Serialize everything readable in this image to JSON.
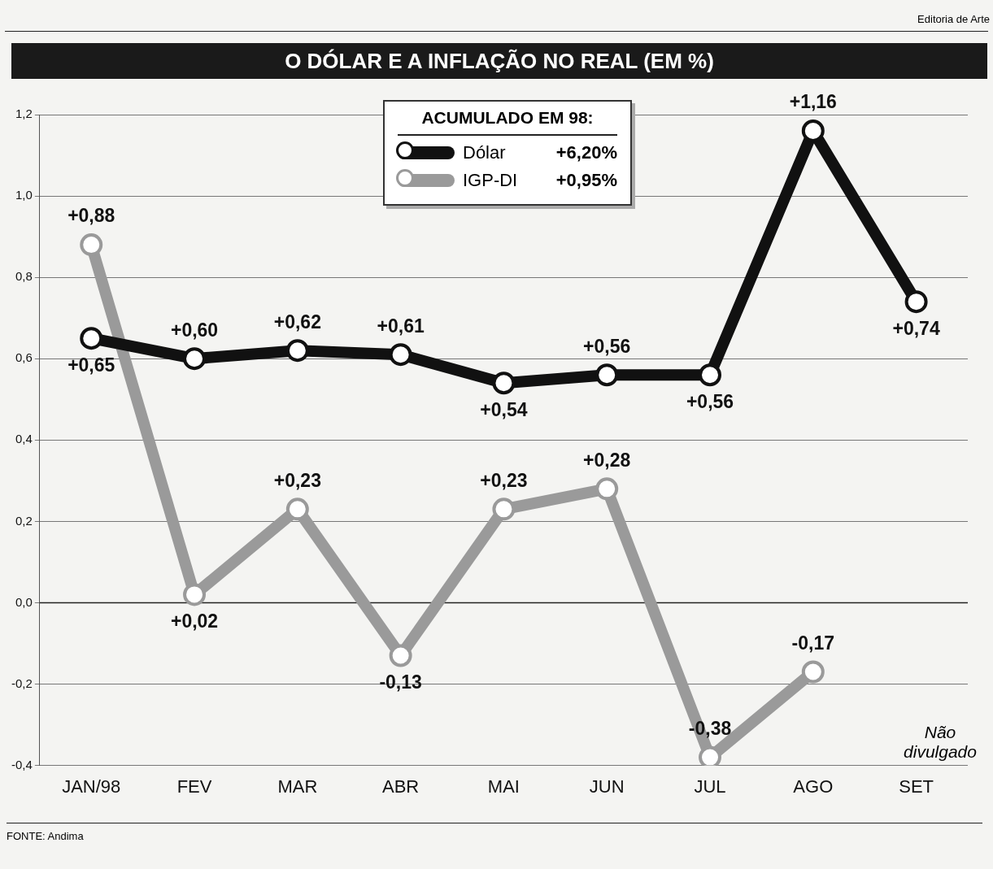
{
  "chart_data": {
    "type": "line",
    "title": "O DÓLAR E A INFLAÇÃO NO REAL (EM %)",
    "legend_title": "ACUMULADO EM 98:",
    "categories": [
      "JAN/98",
      "FEV",
      "MAR",
      "ABR",
      "MAI",
      "JUN",
      "JUL",
      "AGO",
      "SET"
    ],
    "series": [
      {
        "name": "Dólar",
        "color": "#111111",
        "values": [
          0.65,
          0.6,
          0.62,
          0.61,
          0.54,
          0.56,
          0.56,
          1.16,
          0.74
        ],
        "value_labels": [
          "+0,65",
          "+0,60",
          "+0,62",
          "+0,61",
          "+0,54",
          "+0,56",
          "+0,56",
          "+1,16",
          "+0,74"
        ]
      },
      {
        "name": "IGP-DI",
        "color": "#9a9a9a",
        "values": [
          0.88,
          0.02,
          0.23,
          -0.13,
          0.23,
          0.28,
          -0.38,
          -0.17,
          null
        ],
        "value_labels": [
          "+0,88",
          "+0,02",
          "+0,23",
          "-0,13",
          "+0,23",
          "+0,28",
          "-0,38",
          "-0,17",
          null
        ]
      }
    ],
    "ylim": [
      -0.4,
      1.2
    ],
    "yticks": [
      {
        "value": -0.4,
        "label": "-0,4"
      },
      {
        "value": -0.2,
        "label": "-0,2"
      },
      {
        "value": 0,
        "label": "0,0"
      },
      {
        "value": 0.2,
        "label": "0,2"
      },
      {
        "value": 0.4,
        "label": "0,4"
      },
      {
        "value": 0.6,
        "label": "0,6"
      },
      {
        "value": 0.8,
        "label": "0,8"
      },
      {
        "value": 1.0,
        "label": "1,0"
      },
      {
        "value": 1.2,
        "label": "1,2"
      }
    ],
    "grid": "y",
    "legend": "top",
    "marker": "circle",
    "line_style": "solid",
    "ref_lines": [
      {
        "axis": "y",
        "value": 0,
        "color": "#222222",
        "line_style": "solid"
      }
    ],
    "annotations": [
      "+6,20%",
      "+0,95%",
      "Não divulgado",
      "FONTE: Andima",
      "Editoria de Arte"
    ]
  }
}
